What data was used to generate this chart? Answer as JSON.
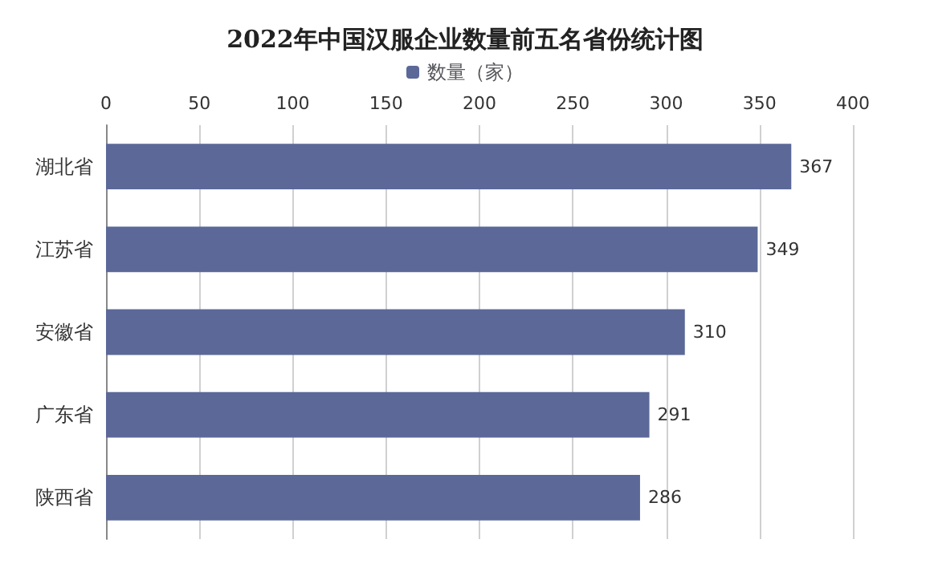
{
  "chart_data": {
    "type": "bar",
    "orientation": "horizontal",
    "title": "2022年中国汉服企业数量前五名省份统计图",
    "categories": [
      "湖北省",
      "江苏省",
      "安徽省",
      "广东省",
      "陕西省"
    ],
    "series": [
      {
        "name": "数量（家）",
        "color": "#5b6898",
        "values": [
          367,
          349,
          310,
          291,
          286
        ]
      }
    ],
    "xlim": [
      0,
      400
    ],
    "xticks": [
      0,
      50,
      100,
      150,
      200,
      250,
      300,
      350,
      400
    ],
    "grid": "x",
    "legend": "top",
    "data_labels": true
  }
}
